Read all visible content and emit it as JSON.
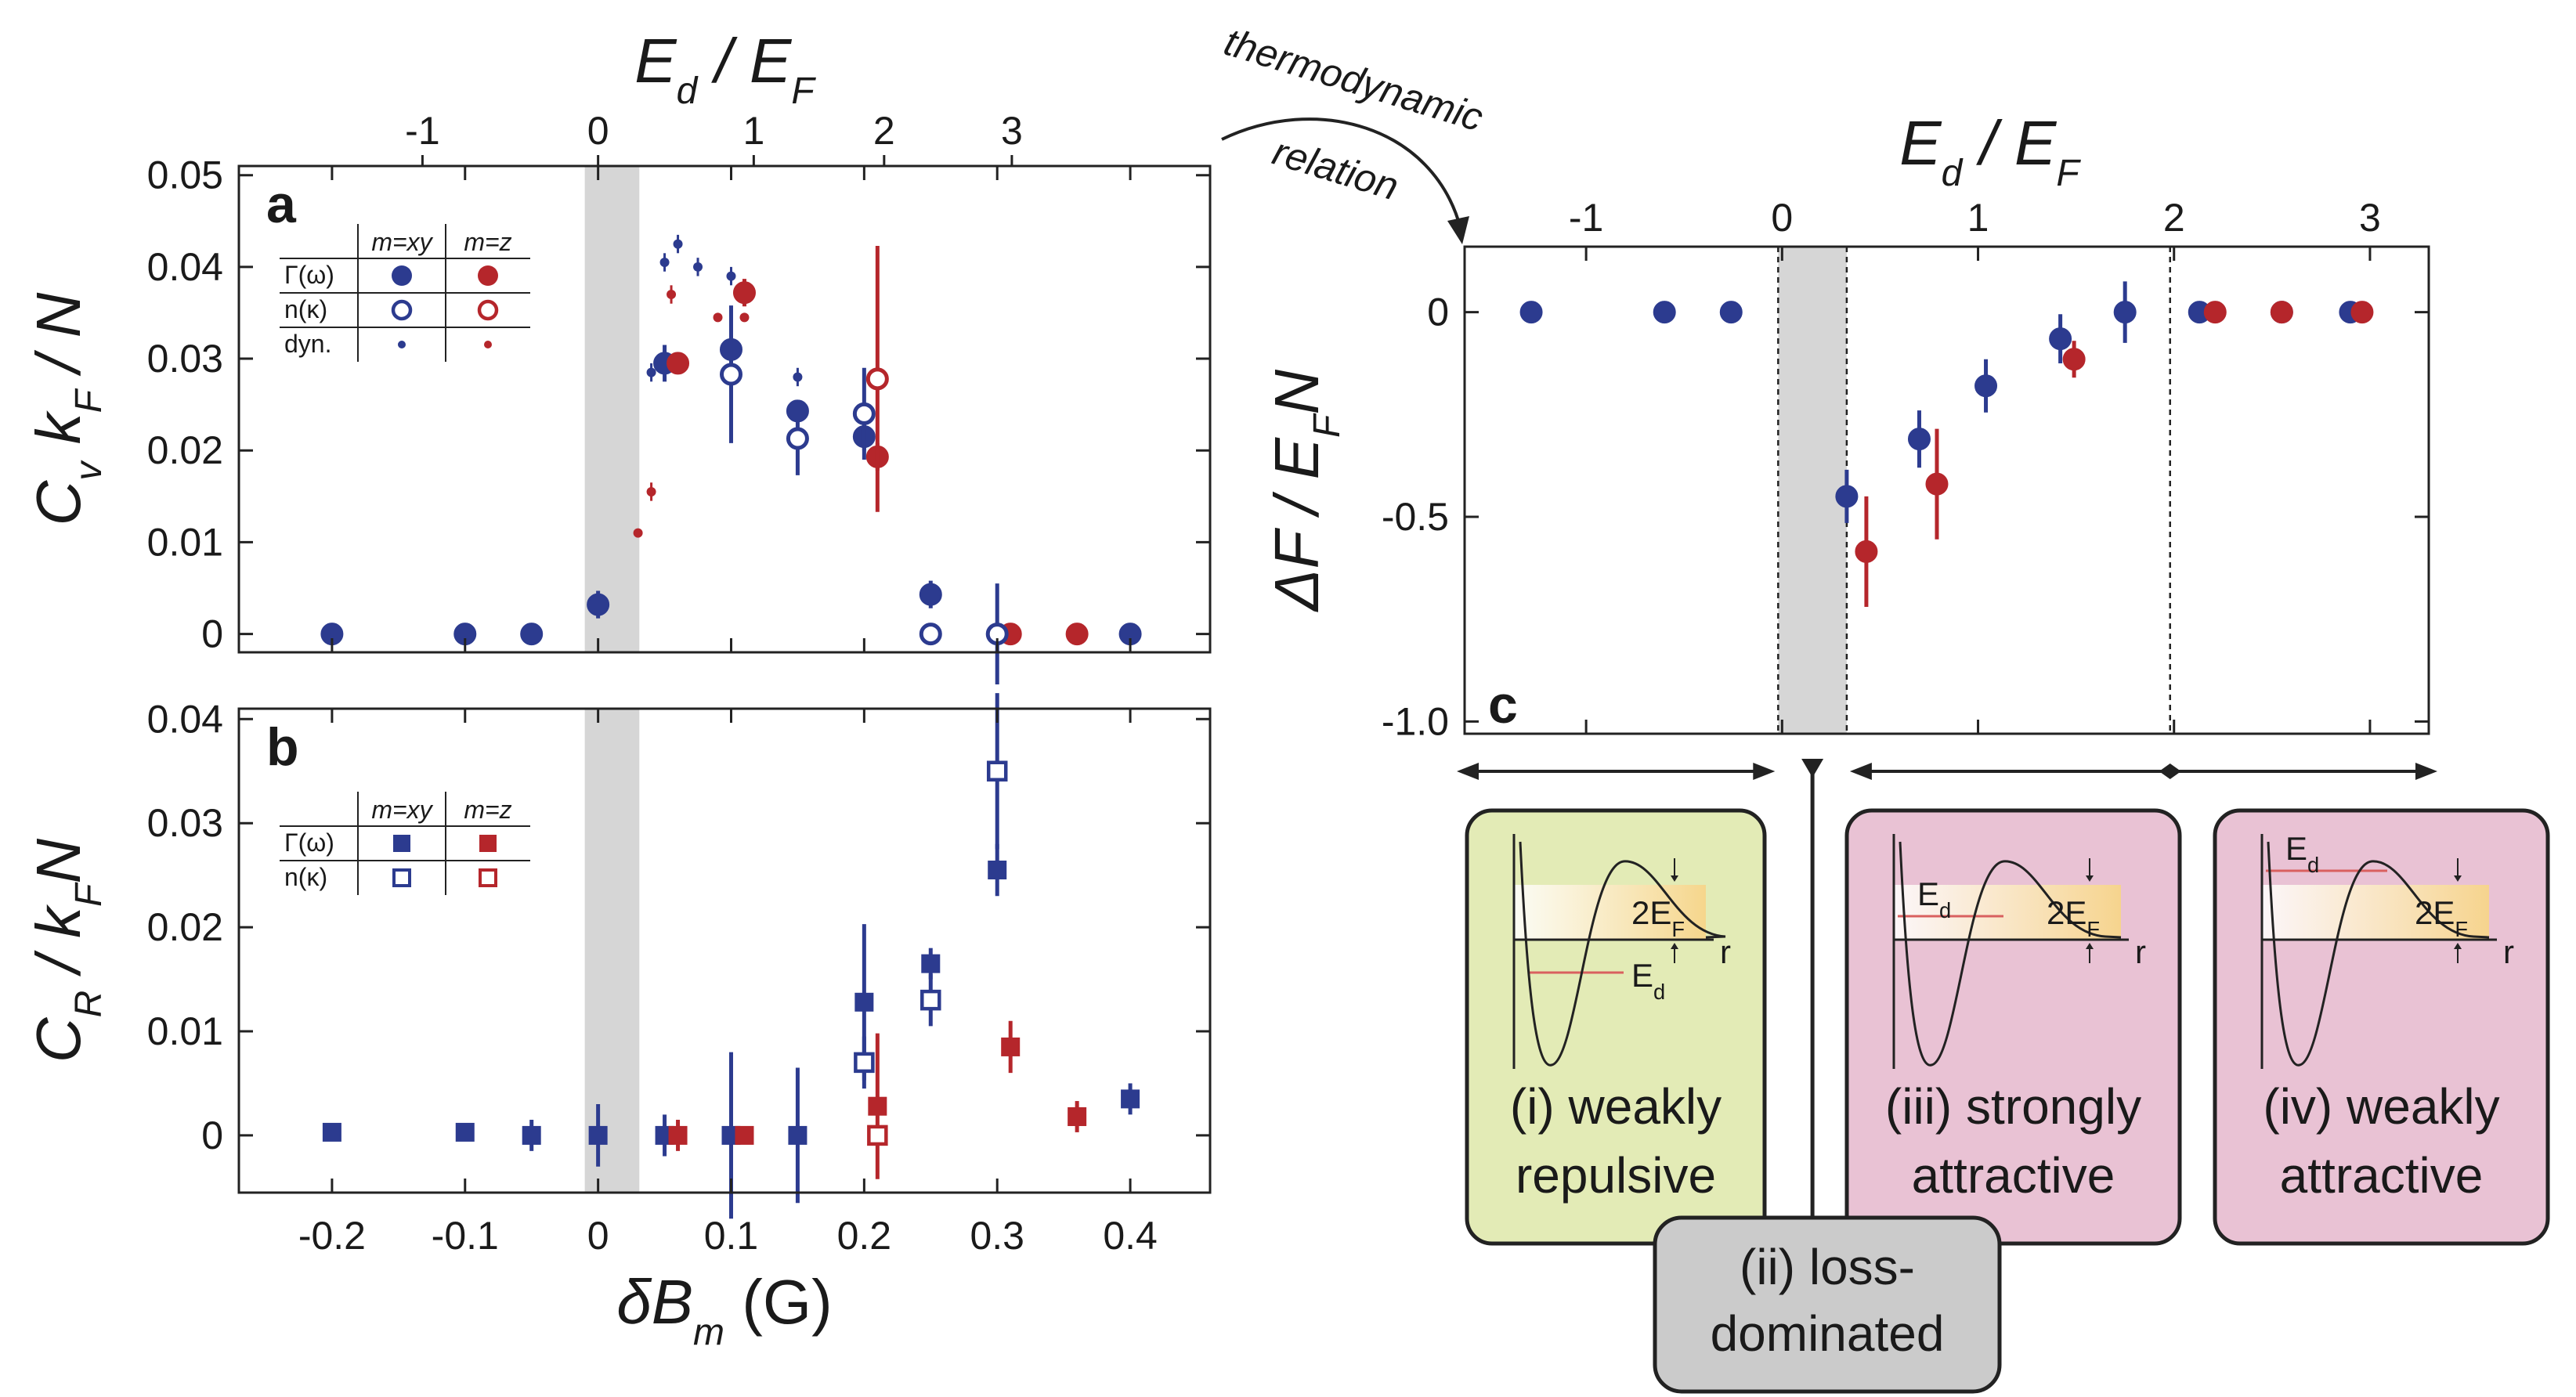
{
  "colors": {
    "xy": "#2c3b8f",
    "z": "#b5262b",
    "shade": "#d6d6d6",
    "box_i": "#e3ebb6",
    "box_ii": "#cbcbcb",
    "box_iii_iv": "#e9c2d4"
  },
  "chart_data": [
    {
      "id": "a",
      "type": "scatter",
      "panel_label": "a",
      "ylabel": "C_v k_F / N",
      "top_xlabel": "E_d / E_F",
      "xlim": [
        -0.27,
        0.46
      ],
      "ylim": [
        -0.002,
        0.051
      ],
      "xticks": [
        -0.2,
        -0.1,
        0,
        0.1,
        0.2,
        0.3,
        0.4
      ],
      "yticks": [
        0,
        0.01,
        0.02,
        0.03,
        0.04,
        0.05
      ],
      "top_ticks": [
        -1,
        0,
        1,
        2,
        3
      ],
      "top_ticks_x": [
        -0.132,
        0,
        0.117,
        0.215,
        0.311
      ],
      "shade_range": [
        -0.01,
        0.031
      ],
      "legend": {
        "headers": [
          "m=xy",
          "m=z"
        ],
        "rows": [
          "Γ(ω)",
          "n(κ)",
          "dyn."
        ]
      },
      "series": [
        {
          "name": "Γ(ω)",
          "group": "xy",
          "marker": "filled-circle",
          "points": [
            [
              -0.2,
              0
            ],
            [
              -0.1,
              0
            ],
            [
              -0.05,
              0
            ],
            [
              0,
              0.0032
            ],
            [
              0.05,
              0.0295
            ],
            [
              0.1,
              0.031
            ],
            [
              0.15,
              0.0243
            ],
            [
              0.2,
              0.0215
            ],
            [
              0.25,
              0.0043
            ],
            [
              0.4,
              0
            ]
          ],
          "err": [
            0,
            0,
            0,
            0.0015,
            0.002,
            0.0015,
            0.0012,
            0.0015,
            0.0015,
            0
          ]
        },
        {
          "name": "Γ(ω)",
          "group": "z",
          "marker": "filled-circle",
          "points": [
            [
              0.06,
              0.0295
            ],
            [
              0.11,
              0.0372
            ],
            [
              0.21,
              0.0193
            ],
            [
              0.31,
              0
            ],
            [
              0.36,
              0
            ]
          ],
          "err": [
            0,
            0.0015,
            0.0015,
            0,
            0
          ]
        },
        {
          "name": "n(κ)",
          "group": "xy",
          "marker": "open-circle",
          "points": [
            [
              0.1,
              0.0283
            ],
            [
              0.15,
              0.0213
            ],
            [
              0.2,
              0.024
            ],
            [
              0.25,
              0
            ],
            [
              0.3,
              0
            ]
          ],
          "err": [
            0.0075,
            0.004,
            0.005,
            0,
            0.0055
          ]
        },
        {
          "name": "n(κ)",
          "group": "z",
          "marker": "open-circle",
          "points": [
            [
              0.21,
              0.0278
            ]
          ],
          "err": [
            0.0145
          ]
        },
        {
          "name": "dyn.",
          "group": "xy",
          "marker": "small-dot",
          "points": [
            [
              0.04,
              0.0285
            ],
            [
              0.05,
              0.0405
            ],
            [
              0.06,
              0.0425
            ],
            [
              0.075,
              0.04
            ],
            [
              0.1,
              0.039
            ],
            [
              0.15,
              0.028
            ]
          ],
          "err": [
            0.001,
            0.001,
            0.001,
            0.001,
            0.001,
            0.001
          ]
        },
        {
          "name": "dyn.",
          "group": "z",
          "marker": "small-dot",
          "points": [
            [
              0.03,
              0.011
            ],
            [
              0.04,
              0.0155
            ],
            [
              0.055,
              0.037
            ],
            [
              0.09,
              0.0345
            ],
            [
              0.11,
              0.0345
            ]
          ],
          "err": [
            0,
            0.001,
            0.001,
            0,
            0
          ]
        }
      ]
    },
    {
      "id": "b",
      "type": "scatter",
      "panel_label": "b",
      "ylabel": "C_R / k_F N",
      "xlabel": "δB_m (G)",
      "xlim": [
        -0.27,
        0.46
      ],
      "ylim": [
        -0.0055,
        0.041
      ],
      "xticks": [
        -0.2,
        -0.1,
        0,
        0.1,
        0.2,
        0.3,
        0.4
      ],
      "yticks": [
        0,
        0.01,
        0.02,
        0.03,
        0.04
      ],
      "shade_range": [
        -0.01,
        0.031
      ],
      "legend": {
        "headers": [
          "m=xy",
          "m=z"
        ],
        "rows": [
          "Γ(ω)",
          "n(κ)"
        ]
      },
      "series": [
        {
          "name": "Γ(ω)",
          "group": "xy",
          "marker": "filled-square",
          "points": [
            [
              -0.2,
              0.0003
            ],
            [
              -0.1,
              0.0003
            ],
            [
              -0.05,
              0
            ],
            [
              0,
              0
            ],
            [
              0.05,
              0
            ],
            [
              0.1,
              0
            ],
            [
              0.15,
              0
            ],
            [
              0.2,
              0.0128
            ],
            [
              0.25,
              0.0165
            ],
            [
              0.3,
              0.0255
            ],
            [
              0.4,
              0.0035
            ]
          ],
          "err": [
            0,
            0,
            0.0015,
            0.003,
            0.002,
            0.008,
            0.0065,
            0.0075,
            0.0015,
            0.0025,
            0.0015
          ]
        },
        {
          "name": "Γ(ω)",
          "group": "z",
          "marker": "filled-square",
          "points": [
            [
              0.06,
              0
            ],
            [
              0.11,
              0
            ],
            [
              0.21,
              0.0028
            ],
            [
              0.31,
              0.0085
            ],
            [
              0.36,
              0.0018
            ]
          ],
          "err": [
            0.0015,
            0,
            0.007,
            0.0025,
            0.0015
          ]
        },
        {
          "name": "n(κ)",
          "group": "xy",
          "marker": "open-square",
          "points": [
            [
              0.2,
              0.007
            ],
            [
              0.25,
              0.013
            ],
            [
              0.3,
              0.035
            ]
          ],
          "err": [
            0.0025,
            0.0025,
            0.0075
          ]
        },
        {
          "name": "n(κ)",
          "group": "z",
          "marker": "open-square",
          "points": [
            [
              0.21,
              0
            ]
          ],
          "err": [
            0
          ]
        }
      ]
    },
    {
      "id": "c",
      "type": "scatter",
      "panel_label": "c",
      "ylabel": "ΔF / E_F N",
      "top_xlabel": "E_d / E_F",
      "xlim": [
        -1.62,
        3.3
      ],
      "ylim": [
        -1.03,
        0.16
      ],
      "top_ticks": [
        -1,
        0,
        1,
        2,
        3
      ],
      "yticks": [
        0,
        -0.5,
        -1.0
      ],
      "ytick_labels": [
        "0",
        "-0.5",
        "-1.0"
      ],
      "shade_range": [
        -0.02,
        0.33
      ],
      "dashed_x": [
        -0.02,
        0.33,
        1.98
      ],
      "series": [
        {
          "name": "",
          "group": "xy",
          "marker": "filled-circle",
          "points": [
            [
              -1.28,
              0
            ],
            [
              -0.6,
              0
            ],
            [
              -0.26,
              0
            ],
            [
              0.33,
              -0.45
            ],
            [
              0.7,
              -0.31
            ],
            [
              1.04,
              -0.18
            ],
            [
              1.42,
              -0.065
            ],
            [
              1.75,
              0
            ],
            [
              2.13,
              0
            ],
            [
              2.55,
              0
            ],
            [
              2.9,
              0
            ]
          ],
          "err": [
            0,
            0,
            0,
            0.065,
            0.07,
            0.065,
            0.06,
            0.075,
            0,
            0,
            0
          ]
        },
        {
          "name": "",
          "group": "z",
          "marker": "filled-circle",
          "points": [
            [
              0.43,
              -0.585
            ],
            [
              0.79,
              -0.42
            ],
            [
              1.49,
              -0.115
            ],
            [
              2.21,
              0
            ],
            [
              2.55,
              0
            ],
            [
              2.96,
              0
            ]
          ],
          "err": [
            0.135,
            0.135,
            0.045,
            0,
            0,
            0
          ]
        }
      ]
    }
  ],
  "annotation": {
    "line1": "thermodynamic",
    "line2": "relation"
  },
  "regions": [
    {
      "line1": "(i) weakly",
      "line2": "repulsive"
    },
    {
      "line1": "(ii) loss-",
      "line2": "dominated"
    },
    {
      "line1": "(iii) strongly",
      "line2": "attractive"
    },
    {
      "line1": "(iv) weakly",
      "line2": "attractive"
    }
  ],
  "schematic": {
    "ed_label": "E",
    "ed_sub": "d",
    "ef_label": "2E",
    "ef_sub": "F",
    "r_label": "r"
  }
}
